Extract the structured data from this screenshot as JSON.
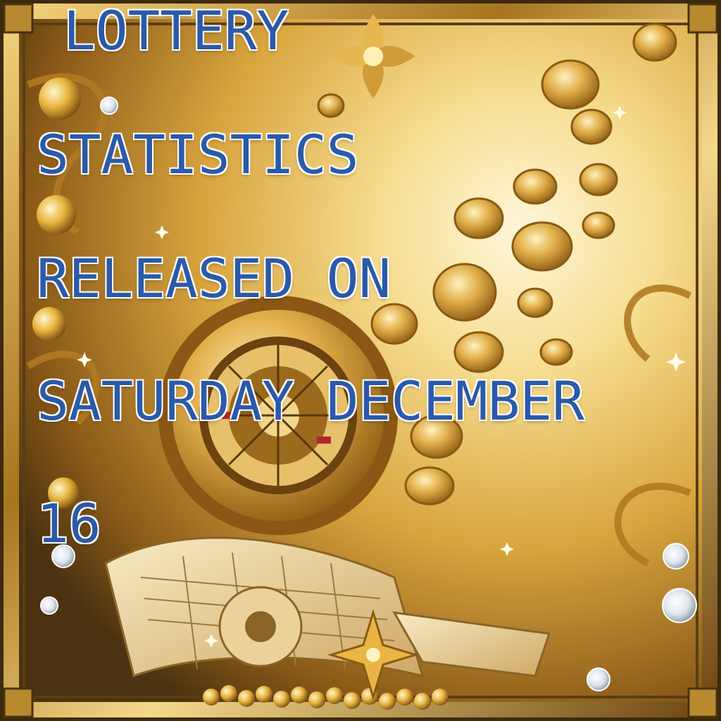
{
  "poster": {
    "lines": [
      "LOTTERY",
      "STATISTICS",
      "RELEASED ON",
      "SATURDAY DECEMBER",
      "16"
    ],
    "colors": {
      "text_fill": "#2a5aa8",
      "text_outline": "#ffffff",
      "gold_light": "#fbe7a6",
      "gold_mid": "#d9a63b",
      "gold_dark": "#7a4f14",
      "frame": "#5a3e12"
    },
    "icons": [
      "coin-icon",
      "roulette-wheel-icon",
      "lottery-ticket-icon",
      "gem-icon",
      "sparkle-icon",
      "fleur-ornament-icon"
    ]
  }
}
